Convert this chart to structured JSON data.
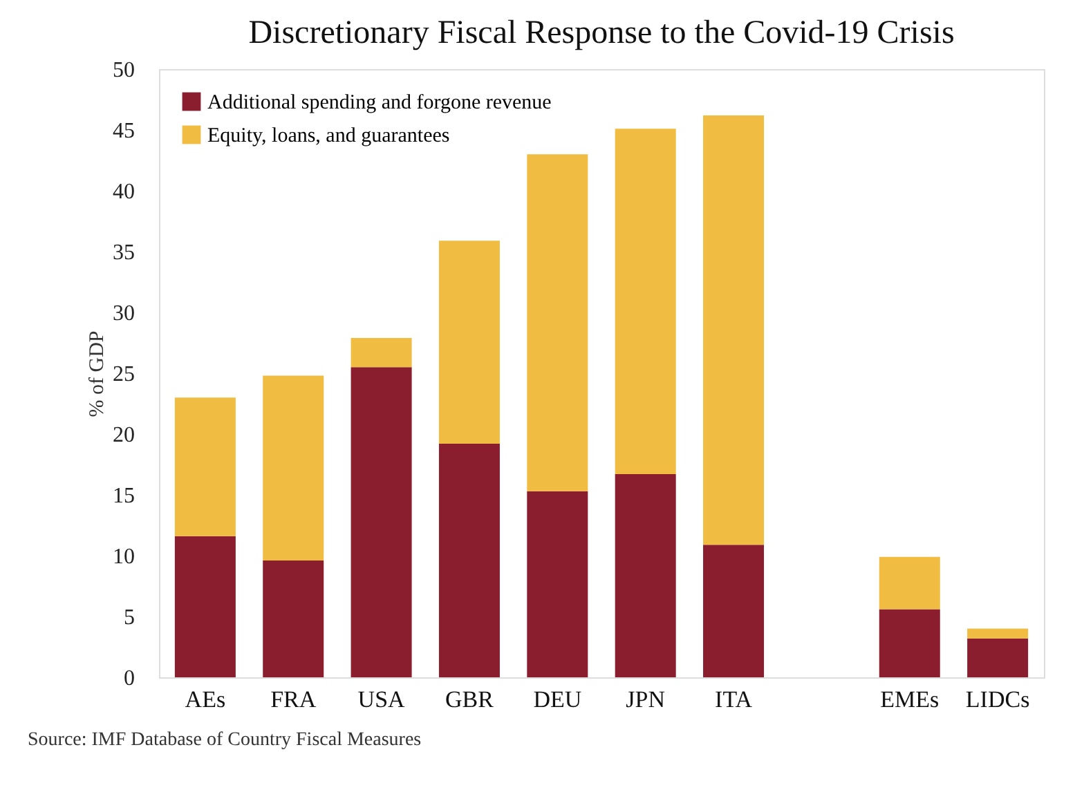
{
  "chart_data": {
    "type": "bar",
    "stacked": true,
    "title": "Discretionary Fiscal Response to the Covid-19 Crisis",
    "ylabel": "% of GDP",
    "categories": [
      "AEs",
      "FRA",
      "USA",
      "GBR",
      "DEU",
      "JPN",
      "ITA",
      null,
      "EMEs",
      "LIDCs"
    ],
    "series": [
      {
        "name": "Additional spending and forgone revenue",
        "color": "#8b1e2e",
        "values": [
          11.6,
          9.6,
          25.5,
          19.2,
          15.3,
          16.7,
          10.9,
          null,
          5.6,
          3.2
        ]
      },
      {
        "name": "Equity, loans, and guarantees",
        "color": "#f0bc42",
        "values": [
          11.4,
          15.2,
          2.4,
          16.7,
          27.7,
          28.4,
          35.3,
          null,
          4.3,
          0.8
        ]
      }
    ],
    "ylim": [
      0,
      50
    ],
    "yticks": [
      0,
      5,
      10,
      15,
      20,
      25,
      30,
      35,
      40,
      45,
      50
    ],
    "grid": false,
    "legend": "top left",
    "annotations": [
      "Source: IMF Database of Country Fiscal Measures"
    ]
  }
}
